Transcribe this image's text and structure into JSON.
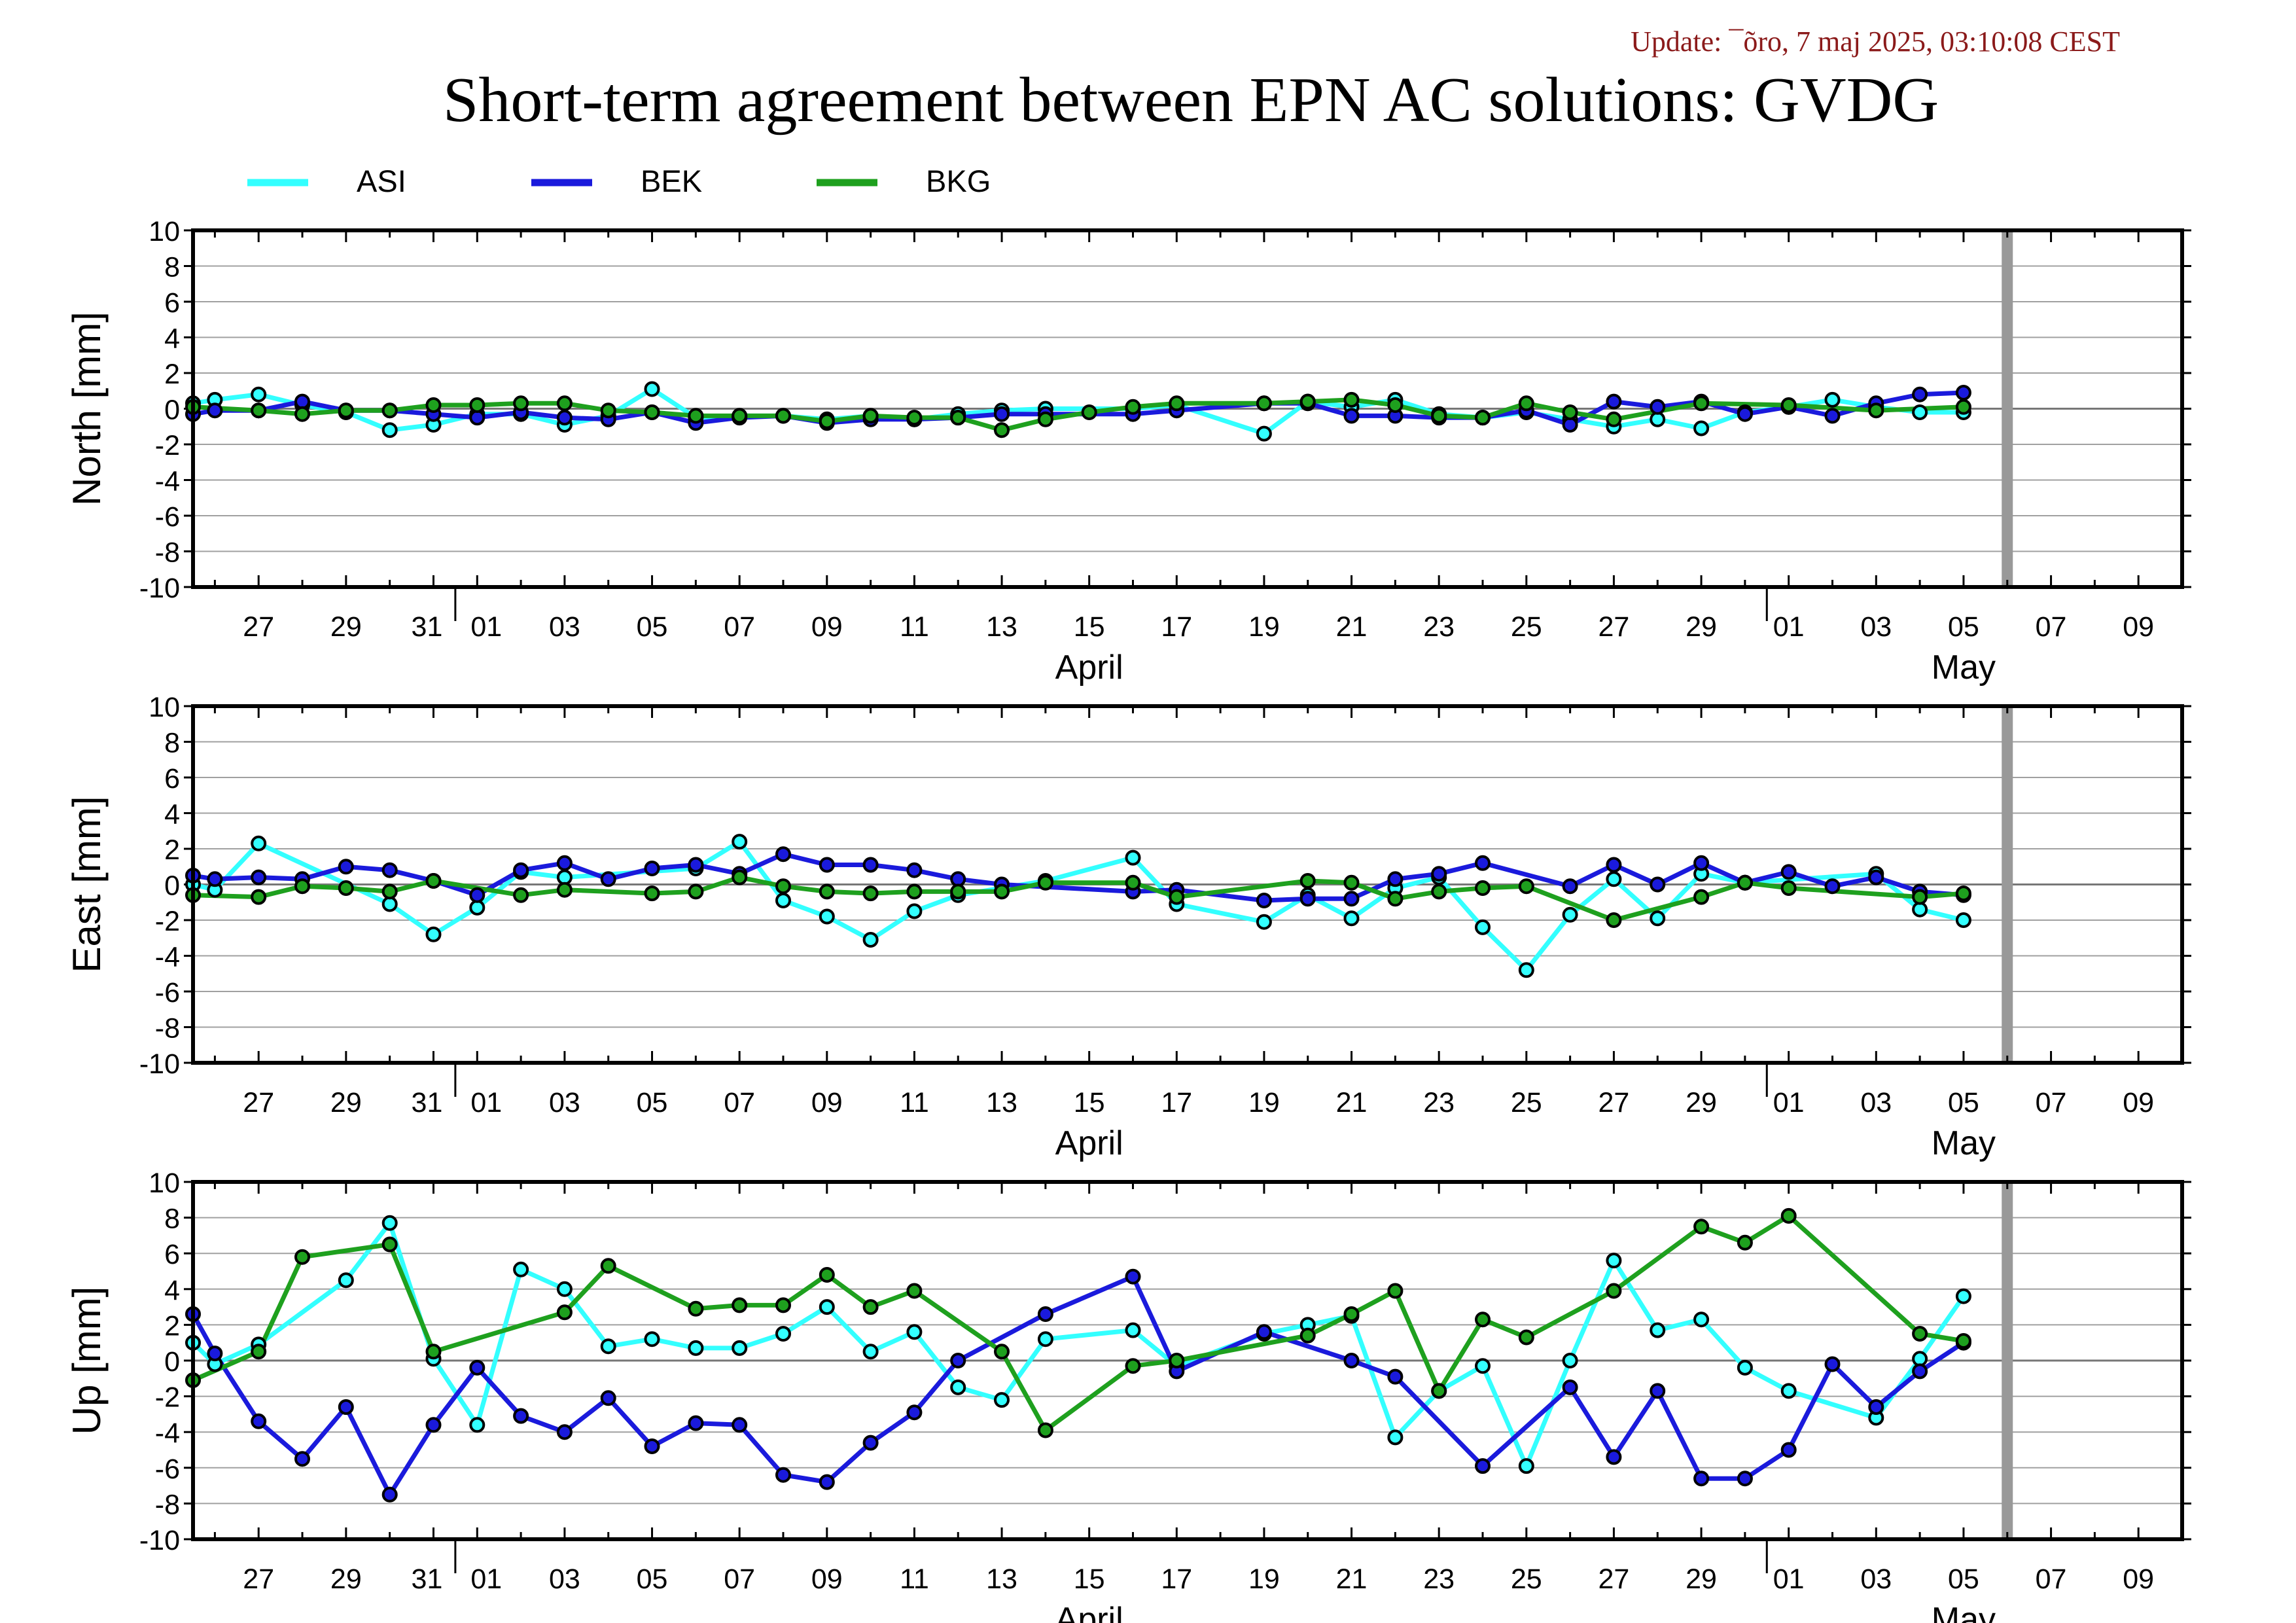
{
  "update_text": "Update: ¯õro, 7 maj 2025, 03:10:08 CEST",
  "title": "Short-term agreement between EPN AC solutions: GVDG",
  "colors": {
    "ASI": "#33ffff",
    "BEK": "#1a1adc",
    "BKG": "#1ea01e",
    "update": "#8b1a1a",
    "now_line": "#999999"
  },
  "legend": [
    {
      "name": "ASI",
      "color": "#33ffff"
    },
    {
      "name": "BEK",
      "color": "#1a1adc"
    },
    {
      "name": "BKG",
      "color": "#1ea01e"
    }
  ],
  "x_axis": {
    "tick_labels": [
      {
        "date": "2025-03-27",
        "label": "27"
      },
      {
        "date": "2025-03-29",
        "label": "29"
      },
      {
        "date": "2025-03-31",
        "label": "31"
      },
      {
        "date": "2025-04-01",
        "label": "01"
      },
      {
        "date": "2025-04-03",
        "label": "03"
      },
      {
        "date": "2025-04-05",
        "label": "05"
      },
      {
        "date": "2025-04-07",
        "label": "07"
      },
      {
        "date": "2025-04-09",
        "label": "09"
      },
      {
        "date": "2025-04-11",
        "label": "11"
      },
      {
        "date": "2025-04-13",
        "label": "13"
      },
      {
        "date": "2025-04-15",
        "label": "15"
      },
      {
        "date": "2025-04-17",
        "label": "17"
      },
      {
        "date": "2025-04-19",
        "label": "19"
      },
      {
        "date": "2025-04-21",
        "label": "21"
      },
      {
        "date": "2025-04-23",
        "label": "23"
      },
      {
        "date": "2025-04-25",
        "label": "25"
      },
      {
        "date": "2025-04-27",
        "label": "27"
      },
      {
        "date": "2025-04-29",
        "label": "29"
      },
      {
        "date": "2025-05-01",
        "label": "01"
      },
      {
        "date": "2025-05-03",
        "label": "03"
      },
      {
        "date": "2025-05-05",
        "label": "05"
      },
      {
        "date": "2025-05-07",
        "label": "07"
      },
      {
        "date": "2025-05-09",
        "label": "09"
      }
    ],
    "month_labels": [
      {
        "date": "2025-04-15",
        "label": "April"
      },
      {
        "date": "2025-05-05",
        "label": "May"
      }
    ],
    "month_boundaries": [
      "2025-03-31T12:00",
      "2025-04-30T12:00"
    ]
  },
  "chart_data": [
    {
      "type": "line",
      "ylabel": "North [mm]",
      "ylim": [
        -10,
        10
      ],
      "yticks": [
        "10",
        "8",
        "6",
        "4",
        "2",
        "0",
        "-2",
        "-4",
        "-6",
        "-8",
        "-10"
      ],
      "xlim": [
        "2025-03-25T12:00",
        "2025-05-10T00:00"
      ],
      "now_marker": "2025-05-06",
      "grid": true,
      "legend": "top",
      "series": [
        {
          "name": "ASI",
          "x": [
            "2025-03-25T12:00",
            "2025-03-26",
            "2025-03-27",
            "2025-03-28",
            "2025-03-29",
            "2025-03-30",
            "2025-03-31",
            "2025-04-01",
            "2025-04-02",
            "2025-04-03",
            "2025-04-04",
            "2025-04-05",
            "2025-04-06",
            "2025-04-07",
            "2025-04-08",
            "2025-04-09",
            "2025-04-10",
            "2025-04-11",
            "2025-04-12",
            "2025-04-13",
            "2025-04-14",
            "2025-04-16",
            "2025-04-17",
            "2025-04-19",
            "2025-04-20",
            "2025-04-21",
            "2025-04-22",
            "2025-04-23",
            "2025-04-24",
            "2025-04-25",
            "2025-04-26",
            "2025-04-27",
            "2025-04-28",
            "2025-04-29",
            "2025-04-30",
            "2025-05-01",
            "2025-05-02",
            "2025-05-03",
            "2025-05-04",
            "2025-05-05"
          ],
          "values": [
            0.3,
            0.5,
            0.8,
            0.2,
            -0.2,
            -1.2,
            -0.9,
            -0.3,
            -0.3,
            -0.9,
            -0.4,
            1.1,
            -0.5,
            -0.4,
            -0.4,
            -0.6,
            -0.4,
            -0.6,
            -0.3,
            -0.1,
            0.0,
            0.0,
            0.2,
            -1.4,
            0.4,
            0.1,
            0.5,
            -0.3,
            -0.5,
            -0.2,
            -0.6,
            -1.0,
            -0.6,
            -1.1,
            -0.2,
            0.1,
            0.5,
            0.1,
            -0.2,
            -0.2
          ]
        },
        {
          "name": "BEK",
          "x": [
            "2025-03-25T12:00",
            "2025-03-26",
            "2025-03-27",
            "2025-03-28",
            "2025-03-29",
            "2025-03-30",
            "2025-03-31",
            "2025-04-01",
            "2025-04-02",
            "2025-04-03",
            "2025-04-04",
            "2025-04-05",
            "2025-04-06",
            "2025-04-07",
            "2025-04-08",
            "2025-04-09",
            "2025-04-10",
            "2025-04-11",
            "2025-04-12",
            "2025-04-13",
            "2025-04-14",
            "2025-04-16",
            "2025-04-17",
            "2025-04-19",
            "2025-04-20",
            "2025-04-21",
            "2025-04-22",
            "2025-04-23",
            "2025-04-24",
            "2025-04-25",
            "2025-04-26",
            "2025-04-27",
            "2025-04-28",
            "2025-04-29",
            "2025-04-30",
            "2025-05-01",
            "2025-05-02",
            "2025-05-03",
            "2025-05-04",
            "2025-05-05"
          ],
          "values": [
            -0.3,
            -0.1,
            -0.1,
            0.4,
            -0.1,
            -0.1,
            -0.3,
            -0.5,
            -0.2,
            -0.5,
            -0.6,
            -0.2,
            -0.8,
            -0.5,
            -0.4,
            -0.8,
            -0.6,
            -0.6,
            -0.5,
            -0.3,
            -0.3,
            -0.3,
            -0.1,
            0.3,
            0.3,
            -0.4,
            -0.4,
            -0.5,
            -0.5,
            -0.1,
            -0.9,
            0.4,
            0.1,
            0.4,
            -0.3,
            0.1,
            -0.4,
            0.3,
            0.8,
            0.9
          ]
        },
        {
          "name": "BKG",
          "x": [
            "2025-03-25T12:00",
            "2025-03-27",
            "2025-03-28",
            "2025-03-29",
            "2025-03-30",
            "2025-03-31",
            "2025-04-01",
            "2025-04-02",
            "2025-04-03",
            "2025-04-04",
            "2025-04-05",
            "2025-04-06",
            "2025-04-07",
            "2025-04-08",
            "2025-04-09",
            "2025-04-10",
            "2025-04-11",
            "2025-04-12",
            "2025-04-13",
            "2025-04-14",
            "2025-04-15",
            "2025-04-16",
            "2025-04-17",
            "2025-04-19",
            "2025-04-20",
            "2025-04-21",
            "2025-04-22",
            "2025-04-23",
            "2025-04-24",
            "2025-04-25",
            "2025-04-26",
            "2025-04-27",
            "2025-04-29",
            "2025-05-01",
            "2025-05-03",
            "2025-05-05"
          ],
          "values": [
            0.1,
            -0.1,
            -0.3,
            -0.1,
            -0.1,
            0.2,
            0.2,
            0.3,
            0.3,
            -0.1,
            -0.2,
            -0.4,
            -0.4,
            -0.4,
            -0.7,
            -0.4,
            -0.5,
            -0.5,
            -1.2,
            -0.6,
            -0.2,
            0.1,
            0.3,
            0.3,
            0.4,
            0.5,
            0.2,
            -0.4,
            -0.5,
            0.3,
            -0.2,
            -0.6,
            0.3,
            0.2,
            -0.1,
            0.1
          ]
        }
      ]
    },
    {
      "type": "line",
      "ylabel": "East [mm]",
      "ylim": [
        -10,
        10
      ],
      "yticks": [
        "10",
        "8",
        "6",
        "4",
        "2",
        "0",
        "-2",
        "-4",
        "-6",
        "-8",
        "-10"
      ],
      "xlim": [
        "2025-03-25T12:00",
        "2025-05-10T00:00"
      ],
      "now_marker": "2025-05-06",
      "grid": true,
      "series": [
        {
          "name": "ASI",
          "x": [
            "2025-03-25T12:00",
            "2025-03-26",
            "2025-03-27",
            "2025-03-30",
            "2025-03-31",
            "2025-04-01",
            "2025-04-02",
            "2025-04-03",
            "2025-04-06",
            "2025-04-07",
            "2025-04-08",
            "2025-04-09",
            "2025-04-10",
            "2025-04-11",
            "2025-04-12",
            "2025-04-14",
            "2025-04-16",
            "2025-04-17",
            "2025-04-19",
            "2025-04-20",
            "2025-04-21",
            "2025-04-22",
            "2025-04-23",
            "2025-04-24",
            "2025-04-25",
            "2025-04-26",
            "2025-04-27",
            "2025-04-28",
            "2025-04-29",
            "2025-04-30",
            "2025-05-03",
            "2025-05-04",
            "2025-05-05"
          ],
          "values": [
            0.0,
            -0.3,
            2.3,
            -1.1,
            -2.8,
            -1.3,
            0.7,
            0.4,
            0.9,
            2.4,
            -0.9,
            -1.8,
            -3.1,
            -1.5,
            -0.6,
            0.2,
            1.5,
            -1.1,
            -2.1,
            -0.6,
            -1.9,
            -0.2,
            0.4,
            -2.4,
            -4.8,
            -1.7,
            0.3,
            -1.9,
            0.6,
            0.1,
            0.6,
            -1.4,
            -2.0
          ]
        },
        {
          "name": "BEK",
          "x": [
            "2025-03-25T12:00",
            "2025-03-26",
            "2025-03-27",
            "2025-03-28",
            "2025-03-29",
            "2025-03-30",
            "2025-03-31",
            "2025-04-01",
            "2025-04-02",
            "2025-04-03",
            "2025-04-04",
            "2025-04-05",
            "2025-04-06",
            "2025-04-07",
            "2025-04-08",
            "2025-04-09",
            "2025-04-10",
            "2025-04-11",
            "2025-04-12",
            "2025-04-13",
            "2025-04-16",
            "2025-04-17",
            "2025-04-19",
            "2025-04-20",
            "2025-04-21",
            "2025-04-22",
            "2025-04-23",
            "2025-04-24",
            "2025-04-26",
            "2025-04-27",
            "2025-04-28",
            "2025-04-29",
            "2025-04-30",
            "2025-05-01",
            "2025-05-02",
            "2025-05-03",
            "2025-05-04",
            "2025-05-05"
          ],
          "values": [
            0.5,
            0.3,
            0.4,
            0.3,
            1.0,
            0.8,
            0.2,
            -0.6,
            0.8,
            1.2,
            0.3,
            0.9,
            1.1,
            0.6,
            1.7,
            1.1,
            1.1,
            0.8,
            0.3,
            0.0,
            -0.4,
            -0.3,
            -0.9,
            -0.8,
            -0.8,
            0.3,
            0.6,
            1.2,
            -0.1,
            1.1,
            0.0,
            1.2,
            0.1,
            0.7,
            -0.1,
            0.4,
            -0.4,
            -0.6
          ]
        },
        {
          "name": "BKG",
          "x": [
            "2025-03-25T12:00",
            "2025-03-27",
            "2025-03-28",
            "2025-03-29",
            "2025-03-30",
            "2025-03-31",
            "2025-04-02",
            "2025-04-03",
            "2025-04-05",
            "2025-04-06",
            "2025-04-07",
            "2025-04-08",
            "2025-04-09",
            "2025-04-10",
            "2025-04-11",
            "2025-04-12",
            "2025-04-13",
            "2025-04-14",
            "2025-04-16",
            "2025-04-17",
            "2025-04-20",
            "2025-04-21",
            "2025-04-22",
            "2025-04-23",
            "2025-04-24",
            "2025-04-25",
            "2025-04-27",
            "2025-04-29",
            "2025-04-30",
            "2025-05-01",
            "2025-05-04",
            "2025-05-05"
          ],
          "values": [
            -0.6,
            -0.7,
            -0.1,
            -0.2,
            -0.4,
            0.2,
            -0.6,
            -0.3,
            -0.5,
            -0.4,
            0.4,
            -0.1,
            -0.4,
            -0.5,
            -0.4,
            -0.4,
            -0.4,
            0.1,
            0.1,
            -0.7,
            0.2,
            0.1,
            -0.8,
            -0.4,
            -0.2,
            -0.1,
            -2.0,
            -0.7,
            0.1,
            -0.2,
            -0.7,
            -0.5
          ]
        }
      ]
    },
    {
      "type": "line",
      "ylabel": "Up [mm]",
      "ylim": [
        -10,
        10
      ],
      "yticks": [
        "10",
        "8",
        "6",
        "4",
        "2",
        "0",
        "-2",
        "-4",
        "-6",
        "-8",
        "-10"
      ],
      "xlim": [
        "2025-03-25T12:00",
        "2025-05-10T00:00"
      ],
      "now_marker": "2025-05-06",
      "grid": true,
      "series": [
        {
          "name": "ASI",
          "x": [
            "2025-03-25T12:00",
            "2025-03-26",
            "2025-03-27",
            "2025-03-29",
            "2025-03-30",
            "2025-03-31",
            "2025-04-01",
            "2025-04-02",
            "2025-04-03",
            "2025-04-04",
            "2025-04-05",
            "2025-04-06",
            "2025-04-07",
            "2025-04-08",
            "2025-04-09",
            "2025-04-10",
            "2025-04-11",
            "2025-04-12",
            "2025-04-13",
            "2025-04-14",
            "2025-04-16",
            "2025-04-17",
            "2025-04-19",
            "2025-04-20",
            "2025-04-21",
            "2025-04-22",
            "2025-04-23",
            "2025-04-24",
            "2025-04-25",
            "2025-04-26",
            "2025-04-27",
            "2025-04-28",
            "2025-04-29",
            "2025-04-30",
            "2025-05-01",
            "2025-05-03",
            "2025-05-04",
            "2025-05-05"
          ],
          "values": [
            1.0,
            -0.2,
            0.9,
            4.5,
            7.7,
            0.1,
            -3.6,
            5.1,
            4.0,
            0.8,
            1.2,
            0.7,
            0.7,
            1.5,
            3.0,
            0.5,
            1.6,
            -1.5,
            -2.2,
            1.2,
            1.7,
            -0.3,
            1.5,
            2.0,
            2.5,
            -4.3,
            -1.7,
            -0.3,
            -5.9,
            0.0,
            5.6,
            1.7,
            2.3,
            -0.4,
            -1.7,
            -3.2,
            0.1,
            3.6
          ]
        },
        {
          "name": "BEK",
          "x": [
            "2025-03-25T12:00",
            "2025-03-26",
            "2025-03-27",
            "2025-03-28",
            "2025-03-29",
            "2025-03-30",
            "2025-03-31",
            "2025-04-01",
            "2025-04-02",
            "2025-04-03",
            "2025-04-04",
            "2025-04-05",
            "2025-04-06",
            "2025-04-07",
            "2025-04-08",
            "2025-04-09",
            "2025-04-10",
            "2025-04-11",
            "2025-04-12",
            "2025-04-14",
            "2025-04-16",
            "2025-04-17",
            "2025-04-19",
            "2025-04-21",
            "2025-04-22",
            "2025-04-24",
            "2025-04-26",
            "2025-04-27",
            "2025-04-28",
            "2025-04-29",
            "2025-04-30",
            "2025-05-01",
            "2025-05-02",
            "2025-05-03",
            "2025-05-04",
            "2025-05-05"
          ],
          "values": [
            2.6,
            0.4,
            -3.4,
            -5.5,
            -2.6,
            -7.5,
            -3.6,
            -0.4,
            -3.1,
            -4.0,
            -2.1,
            -4.8,
            -3.5,
            -3.6,
            -6.4,
            -6.8,
            -4.6,
            -2.9,
            0.0,
            2.6,
            4.7,
            -0.6,
            1.6,
            0.0,
            -0.9,
            -5.9,
            -1.5,
            -5.4,
            -1.7,
            -6.6,
            -6.6,
            -5.0,
            -0.2,
            -2.6,
            -0.6,
            1.0
          ]
        },
        {
          "name": "BKG",
          "x": [
            "2025-03-25T12:00",
            "2025-03-27",
            "2025-03-28",
            "2025-03-30",
            "2025-03-31",
            "2025-04-03",
            "2025-04-04",
            "2025-04-06",
            "2025-04-07",
            "2025-04-08",
            "2025-04-09",
            "2025-04-10",
            "2025-04-11",
            "2025-04-13",
            "2025-04-14",
            "2025-04-16",
            "2025-04-17",
            "2025-04-20",
            "2025-04-21",
            "2025-04-22",
            "2025-04-23",
            "2025-04-24",
            "2025-04-25",
            "2025-04-27",
            "2025-04-29",
            "2025-04-30",
            "2025-05-01",
            "2025-05-04",
            "2025-05-05"
          ],
          "values": [
            -1.1,
            0.5,
            5.8,
            6.5,
            0.5,
            2.7,
            5.3,
            2.9,
            3.1,
            3.1,
            4.8,
            3.0,
            3.9,
            0.5,
            -3.9,
            -0.3,
            0.0,
            1.4,
            2.6,
            3.9,
            -1.7,
            2.3,
            1.3,
            3.9,
            7.5,
            6.6,
            8.1,
            1.5,
            1.1
          ]
        }
      ]
    }
  ]
}
